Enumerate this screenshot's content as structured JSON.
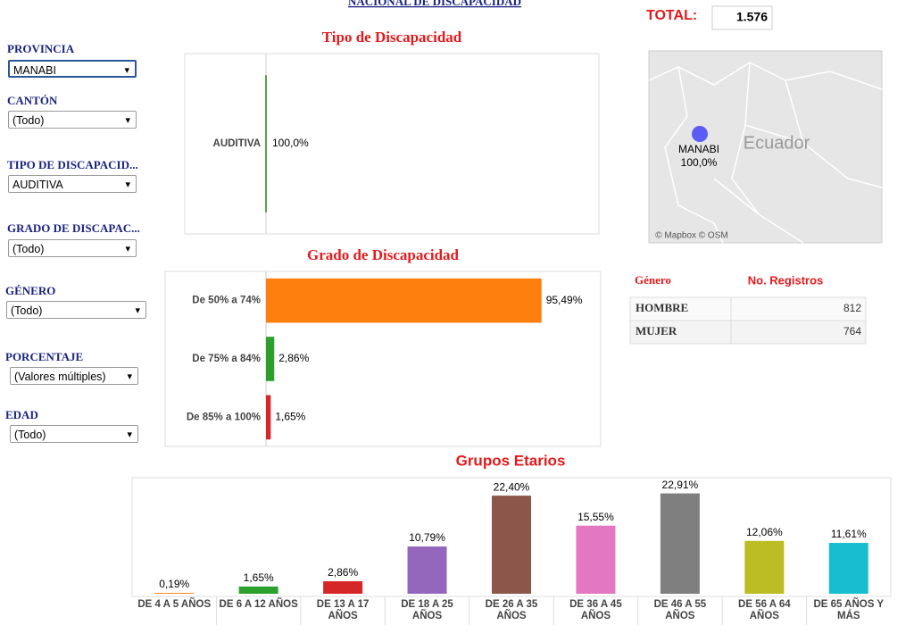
{
  "header": {
    "title": "NACIONAL DE DISCAPACIDAD",
    "total_label": "TOTAL:",
    "total": "1.576"
  },
  "filters": [
    {
      "label": "PROVINCIA",
      "value": "MANABI"
    },
    {
      "label": "CANTÓN",
      "value": "(Todo)"
    },
    {
      "label": "TIPO DE DISCAPACID...",
      "value": "AUDITIVA"
    },
    {
      "label": "GRADO DE DISCAPAC...",
      "value": "(Todo)"
    },
    {
      "label": "GÉNERO",
      "value": "(Todo)"
    },
    {
      "label": "PORCENTAJE",
      "value": "(Valores múltiples)"
    },
    {
      "label": "EDAD",
      "value": "(Todo)"
    }
  ],
  "map": {
    "place": "MANABI",
    "share": "100,0%",
    "country": "Ecuador",
    "credits": "© Mapbox © OSM"
  },
  "table": {
    "columns": [
      "Género",
      "No. Registros"
    ],
    "rows": [
      [
        "HOMBRE",
        812
      ],
      [
        "MUJER",
        764
      ]
    ]
  },
  "chart_data": [
    {
      "type": "mark",
      "title": "Tipo de Discapacidad",
      "categories": [
        "AUDITIVA"
      ],
      "values": [
        100
      ],
      "value_labels": [
        "100,0%"
      ],
      "colors": [
        "#59a14f"
      ]
    },
    {
      "type": "hbar",
      "title": "Grado de Discapacidad",
      "categories": [
        "De 50% a 74%",
        "De 75% a 84%",
        "De 85% a 100%"
      ],
      "values": [
        95.49,
        2.86,
        1.65
      ],
      "value_labels": [
        "95,49%",
        "2,86%",
        "1,65%"
      ],
      "colors": [
        "#ff7f0e",
        "#2ca02c",
        "#d62728"
      ],
      "xlim": [
        0,
        116
      ]
    },
    {
      "type": "bar",
      "title": "Grupos Etarios",
      "categories": [
        "DE 4 A 5 AÑOS",
        "DE 6 A 12 AÑOS",
        "DE 13 A 17 AÑOS",
        "DE 18 A 25 AÑOS",
        "DE 26 A 35 AÑOS",
        "DE 36 A 45 AÑOS",
        "DE 46 A 55 AÑOS",
        "DE 56 A 64 AÑOS",
        "DE 65 AÑOS Y MÁS"
      ],
      "values": [
        0.19,
        1.65,
        2.86,
        10.79,
        22.4,
        15.55,
        22.91,
        12.06,
        11.61
      ],
      "value_labels": [
        "0,19%",
        "1,65%",
        "2,86%",
        "10,79%",
        "22,40%",
        "15,55%",
        "22,91%",
        "12,06%",
        "11,61%"
      ],
      "colors": [
        "#ff7f0e",
        "#2ca02c",
        "#d62728",
        "#9467bd",
        "#8c564b",
        "#e377c2",
        "#7f7f7f",
        "#bcbd22",
        "#17becf"
      ],
      "ylim": [
        0,
        26.5
      ]
    }
  ]
}
